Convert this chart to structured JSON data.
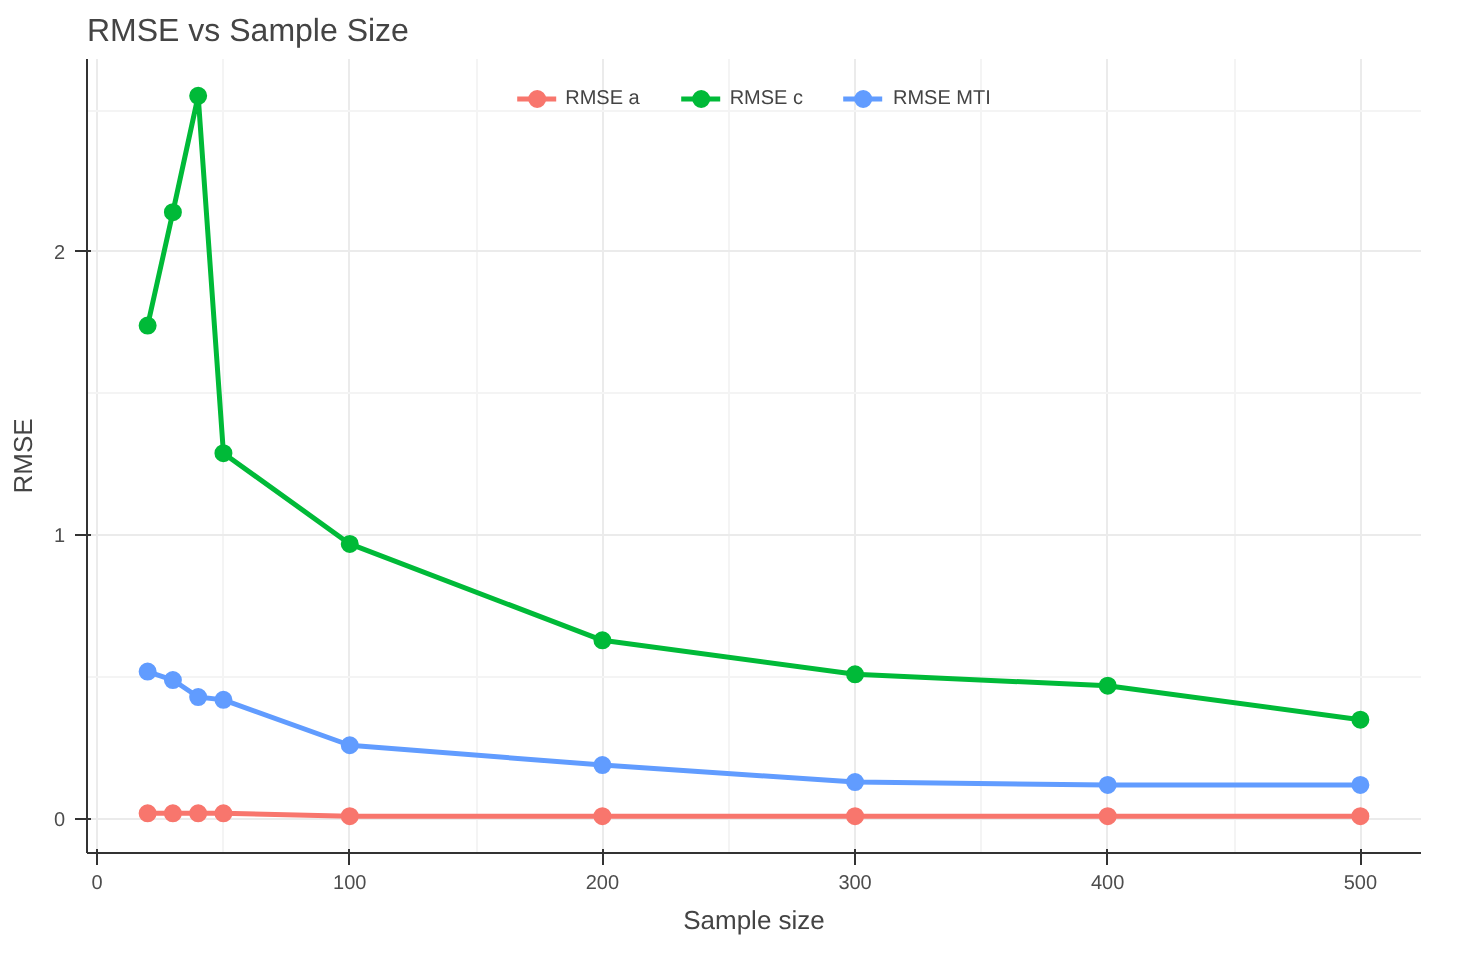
{
  "chart_data": {
    "type": "line",
    "title": "RMSE vs Sample Size",
    "xlabel": "Sample size",
    "ylabel": "RMSE",
    "x": [
      20,
      30,
      40,
      50,
      100,
      200,
      300,
      400,
      500
    ],
    "series": [
      {
        "name": "RMSE a",
        "color": "#f8766d",
        "values": [
          0.02,
          0.02,
          0.02,
          0.02,
          0.01,
          0.01,
          0.01,
          0.01,
          0.01
        ]
      },
      {
        "name": "RMSE c",
        "color": "#00ba38",
        "values": [
          1.74,
          2.14,
          2.55,
          1.29,
          0.97,
          0.63,
          0.51,
          0.47,
          0.35
        ]
      },
      {
        "name": "RMSE MTI",
        "color": "#619cff",
        "values": [
          0.52,
          0.49,
          0.43,
          0.42,
          0.26,
          0.19,
          0.13,
          0.12,
          0.12
        ]
      }
    ],
    "xlim": [
      -4,
      524
    ],
    "ylim": [
      -0.12,
      2.68
    ],
    "xticks": [
      0,
      {
        "value": 50,
        "label": null
      },
      100,
      {
        "value": 150,
        "label": null
      },
      200,
      {
        "value": 250,
        "label": null
      },
      300,
      {
        "value": 350,
        "label": null
      },
      400,
      {
        "value": 450,
        "label": null
      },
      500
    ],
    "yticks": [
      0,
      {
        "value": 0.5,
        "label": null
      },
      1,
      {
        "value": 1.5,
        "label": null
      },
      2,
      {
        "value": 2.5,
        "label": null
      }
    ],
    "grid": true,
    "legend": "top",
    "marker": "circle",
    "line_style": "solid"
  }
}
